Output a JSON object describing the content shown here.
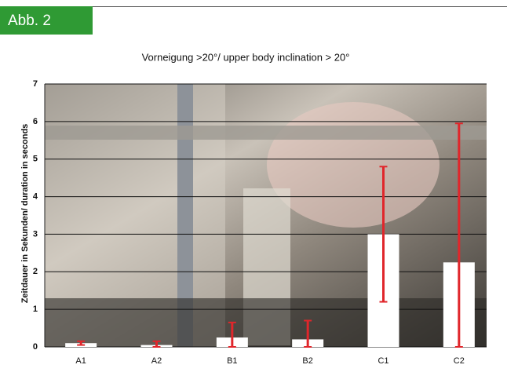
{
  "figure_label": "Abb. 2",
  "chart_data": {
    "type": "bar",
    "title": "Vorneigung >20°/ upper body inclination > 20°",
    "y_label": "Zeitdauer in Sekunden/ duration in seconds",
    "categories": [
      "A1",
      "A2",
      "B1",
      "B2",
      "C1",
      "C2"
    ],
    "values": [
      0.1,
      0.05,
      0.25,
      0.2,
      3.0,
      2.25
    ],
    "errors": [
      0.05,
      0.1,
      0.4,
      0.5,
      1.8,
      3.7
    ],
    "color": "#ffffff",
    "error_color": "#e0262b",
    "ylim": [
      0,
      7
    ],
    "yticks": [
      0,
      1,
      2,
      3,
      4,
      5,
      6,
      7
    ],
    "grid": true
  }
}
